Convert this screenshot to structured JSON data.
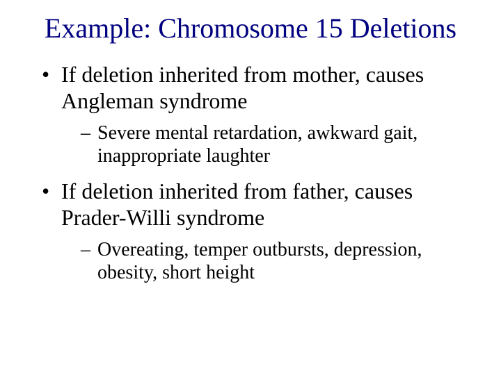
{
  "title_color": "#000080",
  "body_color": "#000000",
  "background_color": "#ffffff",
  "title": "Example: Chromosome 15 Deletions",
  "bullets": [
    {
      "text": "If deletion inherited from mother, causes Angleman syndrome",
      "sub": [
        "Severe mental retardation, awkward gait, inappropriate laughter"
      ]
    },
    {
      "text": "If deletion inherited from father, causes Prader-Willi syndrome",
      "sub": [
        "Overeating, temper outbursts, depression, obesity, short height"
      ]
    }
  ]
}
